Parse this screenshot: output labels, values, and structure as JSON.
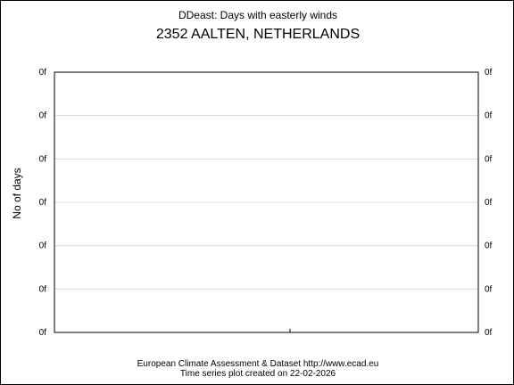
{
  "chart_data": {
    "type": "line",
    "title": "DDeast: Days with easterly winds",
    "subtitle": "2352 AALTEN, NETHERLANDS",
    "ylabel": "No of days",
    "xlabel": "",
    "y_tick_labels": [
      "0f",
      "0f",
      "0f",
      "0f",
      "0f",
      "0f",
      "0f"
    ],
    "x": [],
    "series": [],
    "grid": true,
    "legend": "none"
  },
  "footer": {
    "line1": "European Climate Assessment & Dataset  http://www.ecad.eu",
    "line2": "Time series plot created on 22-02-2026"
  },
  "colors": {
    "axis": "#000000",
    "grid": "#d9d9d9",
    "background": "#ffffff"
  }
}
